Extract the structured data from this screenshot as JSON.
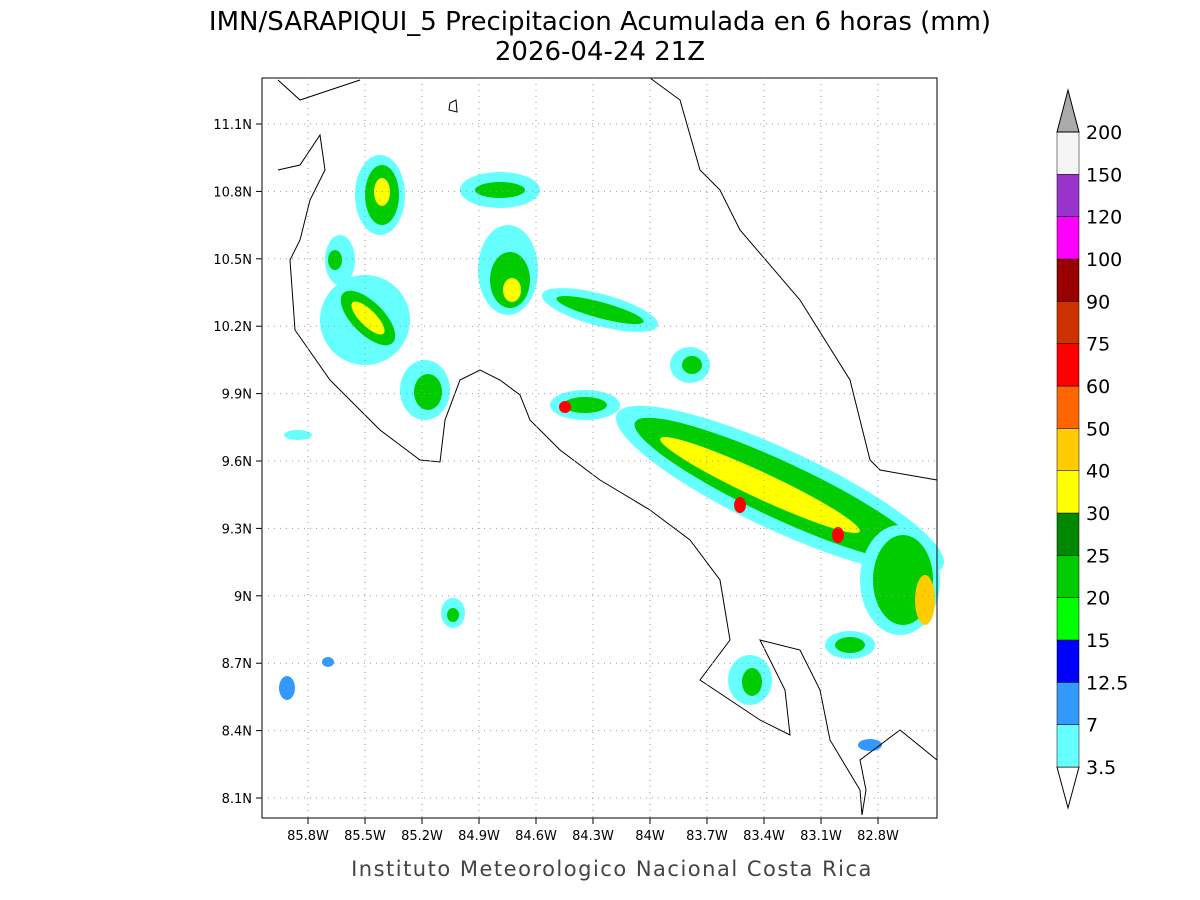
{
  "map": {
    "title": "IMN/SARAPIQUI_5 Precipitacion Acumulada en 6 horas (mm)",
    "subtitle": "2026-04-24 21Z",
    "footer": "Instituto Meteorologico Nacional Costa Rica",
    "lon_ticks": [
      {
        "value": -85.8,
        "label": "85.8W"
      },
      {
        "value": -85.5,
        "label": "85.5W"
      },
      {
        "value": -85.2,
        "label": "85.2W"
      },
      {
        "value": -84.9,
        "label": "84.9W"
      },
      {
        "value": -84.6,
        "label": "84.6W"
      },
      {
        "value": -84.3,
        "label": "84.3W"
      },
      {
        "value": -84,
        "label": "84W"
      },
      {
        "value": -83.7,
        "label": "83.7W"
      },
      {
        "value": -83.4,
        "label": "83.4W"
      },
      {
        "value": -83.1,
        "label": "83.1W"
      },
      {
        "value": -82.8,
        "label": "82.8W"
      }
    ],
    "lat_ticks": [
      {
        "value": 11.1,
        "label": "11.1N"
      },
      {
        "value": 10.8,
        "label": "10.8N"
      },
      {
        "value": 10.5,
        "label": "10.5N"
      },
      {
        "value": 10.2,
        "label": "10.2N"
      },
      {
        "value": 9.9,
        "label": "9.9N"
      },
      {
        "value": 9.6,
        "label": "9.6N"
      },
      {
        "value": 9.3,
        "label": "9.3N"
      },
      {
        "value": 9,
        "label": "9N"
      },
      {
        "value": 8.7,
        "label": "8.7N"
      },
      {
        "value": 8.4,
        "label": "8.4N"
      },
      {
        "value": 8.1,
        "label": "8.1N"
      }
    ],
    "colorbar": {
      "levels": [
        3.5,
        7,
        12.5,
        15,
        20,
        25,
        30,
        40,
        50,
        60,
        75,
        90,
        100,
        120,
        150,
        200
      ],
      "colors": [
        "#66ffff",
        "#3399ff",
        "#0000ff",
        "#00ff00",
        "#00cc00",
        "#008800",
        "#ffff00",
        "#ffcc00",
        "#ff6600",
        "#ff0000",
        "#cc3300",
        "#990000",
        "#ff00ff",
        "#9933cc",
        "#f5f5f5"
      ],
      "below_color": "#ffffff",
      "above_color": "#aaaaaa"
    }
  }
}
